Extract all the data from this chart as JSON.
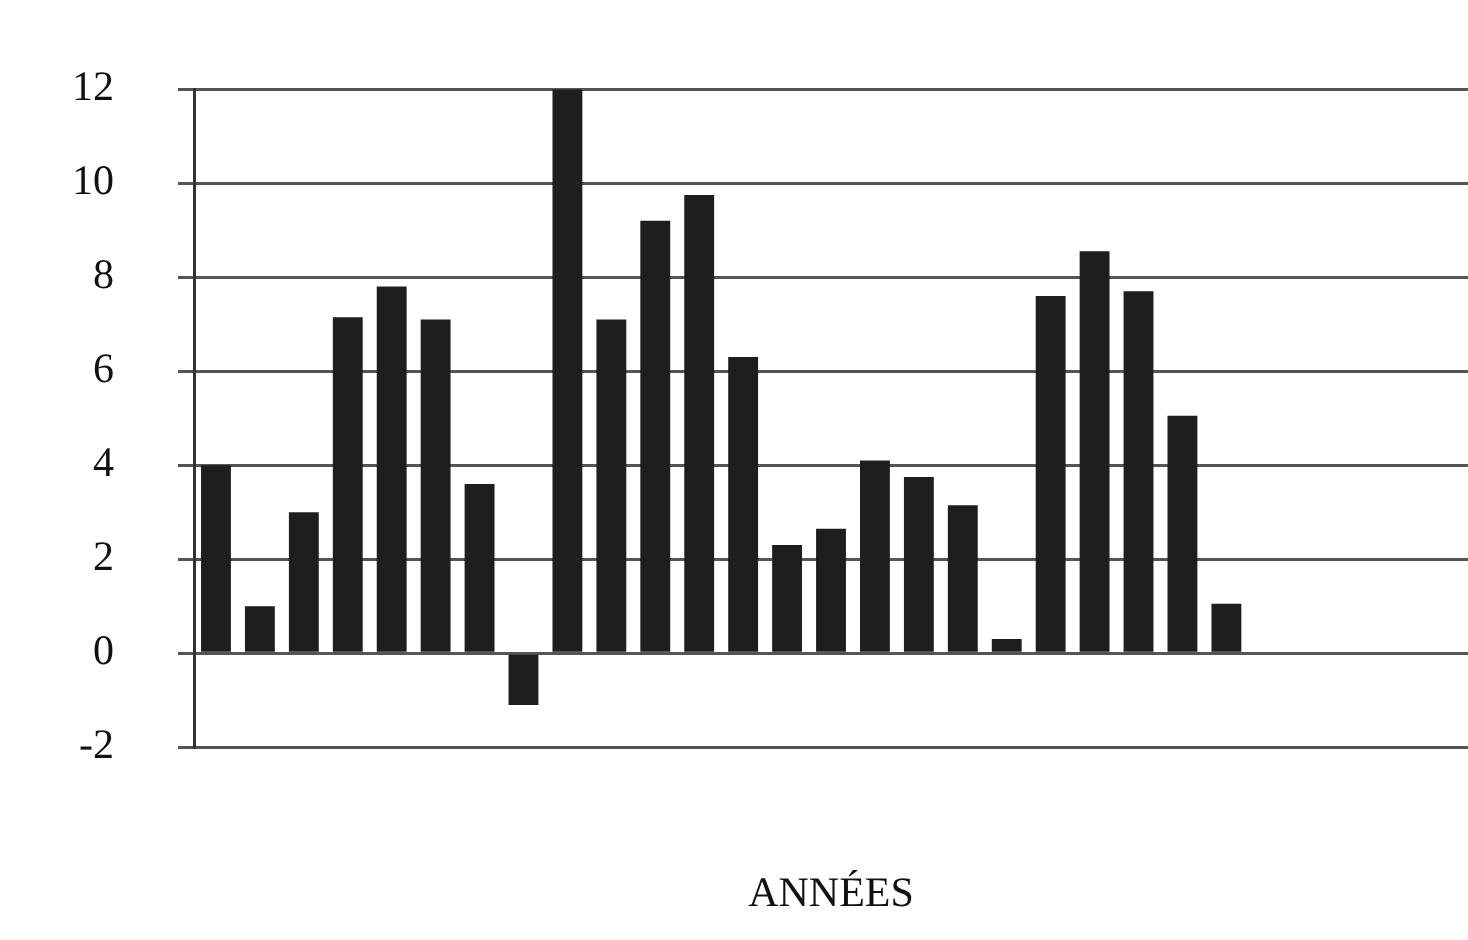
{
  "chart_data": {
    "type": "bar",
    "xlabel": "ANNÉES",
    "categories": [
      null,
      null,
      null,
      null,
      null,
      null,
      null,
      null,
      null,
      null,
      null,
      null,
      null,
      null,
      null,
      null,
      null,
      null,
      null,
      null,
      null,
      null,
      null,
      null,
      null,
      null,
      null,
      null,
      null
    ],
    "values": [
      4.0,
      1.0,
      3.0,
      7.15,
      7.8,
      7.1,
      3.6,
      -1.1,
      12,
      7.1,
      9.2,
      9.75,
      6.3,
      2.3,
      2.65,
      4.1,
      3.75,
      3.15,
      0.3,
      7.6,
      8.55,
      7.7,
      5.05,
      1.05,
      null,
      null,
      null,
      null,
      null
    ],
    "color": "#1e1e1e",
    "ylim": [
      -2,
      12
    ],
    "yticks": [
      -2,
      0,
      2,
      4,
      6,
      8,
      10,
      12
    ],
    "grid": "y",
    "legend": false
  }
}
